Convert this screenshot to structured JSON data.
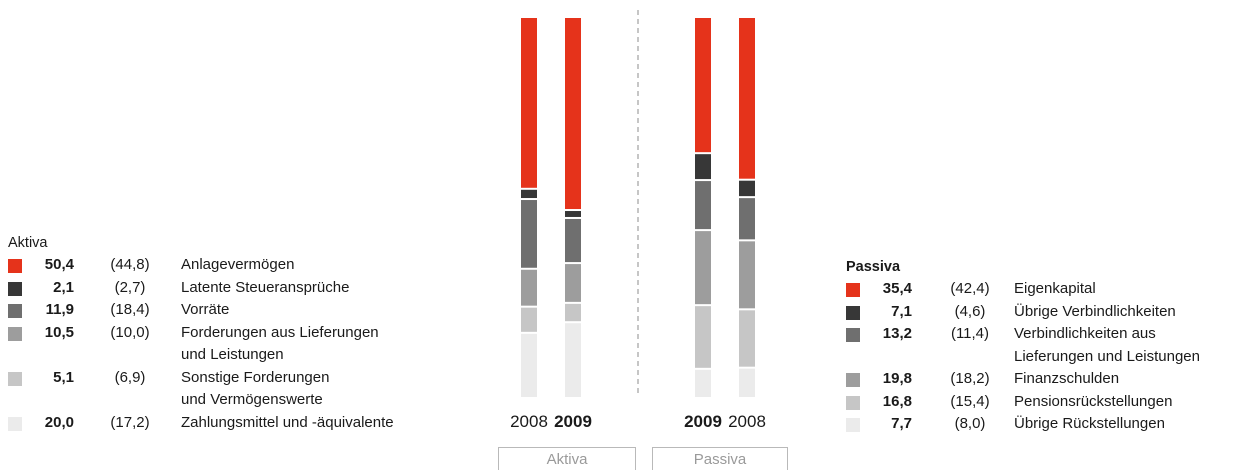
{
  "chart_data": {
    "type": "stacked-bar",
    "categories": [
      "2008",
      "2009",
      "2009",
      "2008"
    ],
    "category_bold": [
      false,
      true,
      true,
      false
    ],
    "groups": [
      "Aktiva",
      "Passiva"
    ],
    "ylim": [
      0,
      100
    ],
    "aktiva": {
      "title": "Aktiva",
      "series": [
        {
          "name": "Zahlungsmittel und -äquivalente",
          "cur": "20,0",
          "prev": "(17,2)",
          "v2009": 20.0,
          "v2008": 17.2,
          "color": "#ebebeb"
        },
        {
          "name": "Sonstige Forderungen\nund Vermögenswerte",
          "cur": "5,1",
          "prev": "(6,9)",
          "v2009": 5.1,
          "v2008": 6.9,
          "color": "#c6c6c6"
        },
        {
          "name": "Forderungen aus Lieferungen\nund Leistungen",
          "cur": "10,5",
          "prev": "(10,0)",
          "v2009": 10.5,
          "v2008": 10.0,
          "color": "#9d9d9d"
        },
        {
          "name": "Vorräte",
          "cur": "11,9",
          "prev": "(18,4)",
          "v2009": 11.9,
          "v2008": 18.4,
          "color": "#6f6f6f"
        },
        {
          "name": "Latente Steueransprüche",
          "cur": "2,1",
          "prev": "(2,7)",
          "v2009": 2.1,
          "v2008": 2.7,
          "color": "#373737"
        },
        {
          "name": "Anlagevermögen",
          "cur": "50,4",
          "prev": "(44,8)",
          "v2009": 50.4,
          "v2008": 44.8,
          "color": "#e5331b"
        }
      ]
    },
    "passiva": {
      "title": "Passiva",
      "series": [
        {
          "name": "Übrige Rückstellungen",
          "cur": "7,7",
          "prev": "(8,0)",
          "v2009": 7.7,
          "v2008": 8.0,
          "color": "#ebebeb"
        },
        {
          "name": "Pensionsrückstellungen",
          "cur": "16,8",
          "prev": "(15,4)",
          "v2009": 16.8,
          "v2008": 15.4,
          "color": "#c6c6c6"
        },
        {
          "name": "Finanzschulden",
          "cur": "19,8",
          "prev": "(18,2)",
          "v2009": 19.8,
          "v2008": 18.2,
          "color": "#9d9d9d"
        },
        {
          "name": "Verbindlichkeiten aus\nLieferungen und Leistungen",
          "cur": "13,2",
          "prev": "(11,4)",
          "v2009": 13.2,
          "v2008": 11.4,
          "color": "#6f6f6f"
        },
        {
          "name": "Übrige Verbindlichkeiten",
          "cur": "7,1",
          "prev": "(4,6)",
          "v2009": 7.1,
          "v2008": 4.6,
          "color": "#373737"
        },
        {
          "name": "Eigenkapital",
          "cur": "35,4",
          "prev": "(42,4)",
          "v2009": 35.4,
          "v2008": 42.4,
          "color": "#e5331b"
        }
      ]
    }
  }
}
